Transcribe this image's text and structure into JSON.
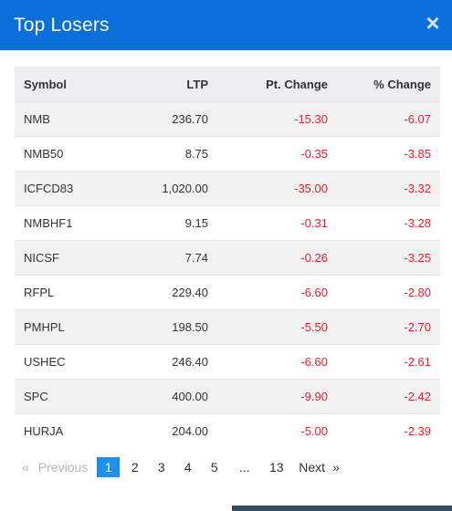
{
  "modal": {
    "title": "Top Losers",
    "close_glyph": "×"
  },
  "table": {
    "headers": {
      "symbol": "Symbol",
      "ltp": "LTP",
      "pt_change": "Pt. Change",
      "pct_change": "% Change"
    },
    "rows": [
      {
        "symbol": "NMB",
        "ltp": "236.70",
        "pt_change": "-15.30",
        "pct_change": "-6.07"
      },
      {
        "symbol": "NMB50",
        "ltp": "8.75",
        "pt_change": "-0.35",
        "pct_change": "-3.85"
      },
      {
        "symbol": "ICFCD83",
        "ltp": "1,020.00",
        "pt_change": "-35.00",
        "pct_change": "-3.32"
      },
      {
        "symbol": "NMBHF1",
        "ltp": "9.15",
        "pt_change": "-0.31",
        "pct_change": "-3.28"
      },
      {
        "symbol": "NICSF",
        "ltp": "7.74",
        "pt_change": "-0.26",
        "pct_change": "-3.25"
      },
      {
        "symbol": "RFPL",
        "ltp": "229.40",
        "pt_change": "-6.60",
        "pct_change": "-2.80"
      },
      {
        "symbol": "PMHPL",
        "ltp": "198.50",
        "pt_change": "-5.50",
        "pct_change": "-2.70"
      },
      {
        "symbol": "USHEC",
        "ltp": "246.40",
        "pt_change": "-6.60",
        "pct_change": "-2.61"
      },
      {
        "symbol": "SPC",
        "ltp": "400.00",
        "pt_change": "-9.90",
        "pct_change": "-2.42"
      },
      {
        "symbol": "HURJA",
        "ltp": "204.00",
        "pt_change": "-5.00",
        "pct_change": "-2.39"
      }
    ]
  },
  "pagination": {
    "prev_arrow": "«",
    "prev_label": "Previous",
    "pages": [
      "1",
      "2",
      "3",
      "4",
      "5"
    ],
    "active_page": "1",
    "ellipsis": "...",
    "last_page": "13",
    "next_label": "Next",
    "next_arrow": "»"
  },
  "colors": {
    "header_bg": "#0a6fd8",
    "negative": "#e8202a",
    "active_page_bg": "#1f8ef1"
  }
}
